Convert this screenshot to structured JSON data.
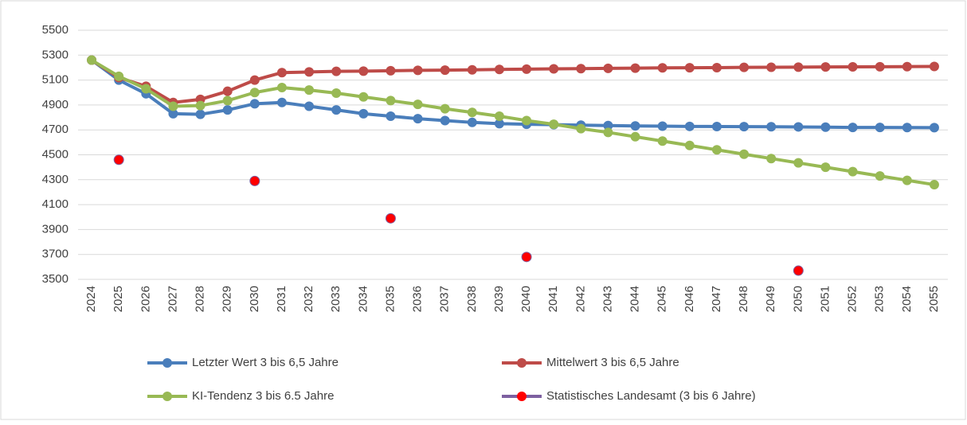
{
  "chart_data": {
    "type": "line",
    "categories": [
      "2024",
      "2025",
      "2026",
      "2027",
      "2028",
      "2029",
      "2030",
      "2031",
      "2032",
      "2033",
      "2034",
      "2035",
      "2036",
      "2037",
      "2038",
      "2039",
      "2040",
      "2041",
      "2042",
      "2043",
      "2044",
      "2045",
      "2046",
      "2047",
      "2048",
      "2049",
      "2050",
      "2051",
      "2052",
      "2053",
      "2054",
      "2055"
    ],
    "series": [
      {
        "name": "Letzter Wert  3 bis 6,5 Jahre",
        "color": "#4a7ebb",
        "marker_color": "#4a7ebb",
        "values": [
          5260,
          5100,
          4990,
          4830,
          4825,
          4860,
          4910,
          4920,
          4890,
          4860,
          4830,
          4810,
          4790,
          4775,
          4760,
          4750,
          4745,
          4742,
          4738,
          4735,
          4732,
          4730,
          4728,
          4727,
          4726,
          4725,
          4724,
          4722,
          4720,
          4720,
          4719,
          4718
        ]
      },
      {
        "name": "Mittelwert  3 bis 6,5 Jahre",
        "color": "#be4b48",
        "marker_color": "#be4b48",
        "values": [
          5260,
          5120,
          5050,
          4920,
          4945,
          5010,
          5100,
          5160,
          5165,
          5170,
          5172,
          5175,
          5178,
          5180,
          5182,
          5185,
          5188,
          5190,
          5192,
          5194,
          5196,
          5198,
          5199,
          5200,
          5202,
          5203,
          5204,
          5205,
          5206,
          5207,
          5208,
          5209
        ]
      },
      {
        "name": "KI-Tendenz 3 bis 6.5 Jahre",
        "color": "#98b954",
        "marker_color": "#98b954",
        "values": [
          5260,
          5130,
          5030,
          4890,
          4895,
          4935,
          5000,
          5040,
          5020,
          4995,
          4965,
          4935,
          4905,
          4870,
          4840,
          4810,
          4775,
          4745,
          4710,
          4680,
          4645,
          4610,
          4575,
          4540,
          4505,
          4470,
          4435,
          4400,
          4365,
          4330,
          4295,
          4260
        ]
      },
      {
        "name": "Statistisches Landesamt (3 bis 6 Jahre)",
        "color": "#7d60a0",
        "marker_color": "#ff0000",
        "values": [
          null,
          4460,
          null,
          null,
          null,
          null,
          4290,
          null,
          null,
          null,
          null,
          3990,
          null,
          null,
          null,
          null,
          3680,
          null,
          null,
          null,
          null,
          null,
          null,
          null,
          null,
          null,
          3570,
          null,
          null,
          null,
          null,
          null
        ]
      }
    ],
    "ylim": [
      3500,
      5500
    ],
    "yticks": [
      3500,
      3700,
      3900,
      4100,
      4300,
      4500,
      4700,
      4900,
      5100,
      5300,
      5500
    ],
    "grid": true
  }
}
